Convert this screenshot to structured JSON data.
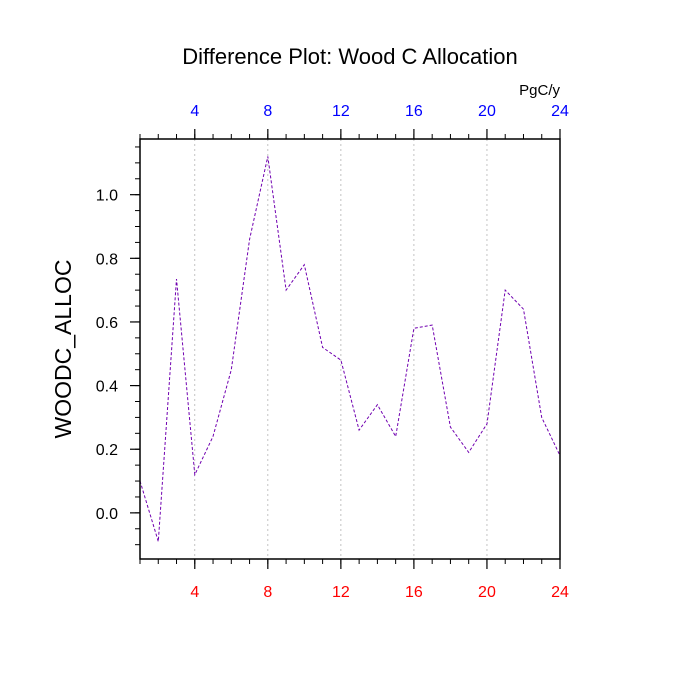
{
  "chart_data": {
    "type": "line",
    "title": "Difference Plot: Wood C Allocation",
    "ylabel": "WOODC_ALLOC",
    "top_axis_units": "PgC/y",
    "xlim": [
      1,
      24
    ],
    "ylim": [
      -0.145,
      1.175
    ],
    "x_ticks": [
      "4",
      "8",
      "12",
      "16",
      "20",
      "24"
    ],
    "x_tick_values": [
      4,
      8,
      12,
      16,
      20,
      24
    ],
    "y_ticks": [
      "0.0",
      "0.2",
      "0.4",
      "0.6",
      "0.8",
      "1.0"
    ],
    "y_tick_values": [
      0.0,
      0.2,
      0.4,
      0.6,
      0.8,
      1.0
    ],
    "bottom_tick_color": "#ff0000",
    "top_tick_color": "#0000ff",
    "line_color": "#7000b0",
    "gridlines": "vertical dotted",
    "series": [
      {
        "x": [
          1,
          2,
          3,
          4,
          5,
          6,
          7,
          8,
          9,
          10,
          11,
          12,
          13,
          14,
          15,
          16,
          17,
          18,
          19,
          20,
          21,
          22,
          23,
          24
        ],
        "values": [
          0.1,
          -0.09,
          0.735,
          0.12,
          0.24,
          0.45,
          0.86,
          1.12,
          0.7,
          0.78,
          0.52,
          0.48,
          0.26,
          0.34,
          0.24,
          0.58,
          0.59,
          0.27,
          0.19,
          0.28,
          0.7,
          0.64,
          0.3,
          0.18
        ]
      }
    ]
  }
}
